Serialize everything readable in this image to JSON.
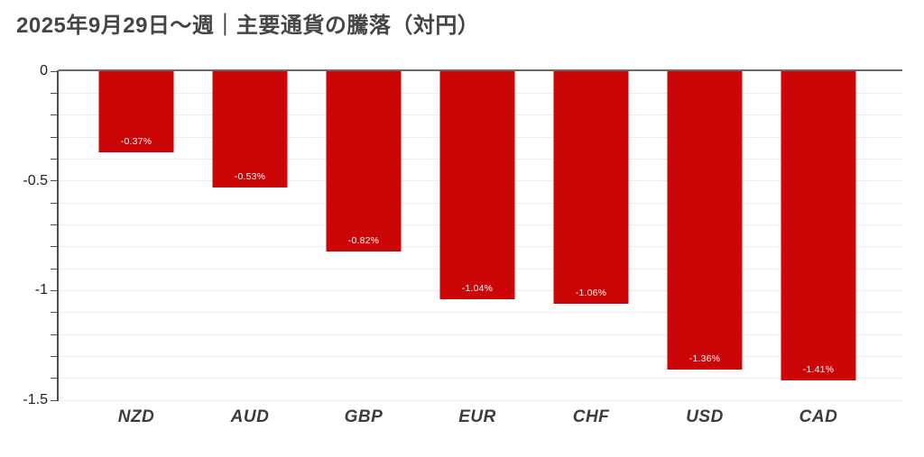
{
  "title": {
    "text": "2025年9月29日〜週｜主要通貨の騰落（対円）"
  },
  "chart_data": {
    "type": "bar",
    "title": "2025年9月29日〜週｜主要通貨の騰落（対円）",
    "categories": [
      "NZD",
      "AUD",
      "GBP",
      "EUR",
      "CHF",
      "USD",
      "CAD"
    ],
    "values": [
      -0.37,
      -0.53,
      -0.82,
      -1.04,
      -1.06,
      -1.36,
      -1.41
    ],
    "data_labels": [
      "-0.37%",
      "-0.53%",
      "-0.82%",
      "-1.04%",
      "-1.06%",
      "-1.36%",
      "-1.41%"
    ],
    "xlabel": "",
    "ylabel": "",
    "ylim": [
      -1.5,
      0
    ],
    "y_tick_values": [
      0,
      -0.5,
      -1,
      -1.5
    ],
    "y_tick_labels": [
      "0",
      "-0.5",
      "-1",
      "-1.5"
    ],
    "minor_grid_step": 0.1,
    "grid": "horizontal-minor",
    "legend_position": "none",
    "bar_orientation": "vertical-negative",
    "colors": {
      "bar": "#CC0606",
      "bar_label": "#FFFFFF",
      "axis": "#4D4D4D",
      "zero_line": "#6B6B6B",
      "gridline": "#EDEDED",
      "title_text": "#454545",
      "tick_label": "#1F1F1F",
      "category_label": "#3C3C3C",
      "background": "#FFFFFF"
    }
  }
}
